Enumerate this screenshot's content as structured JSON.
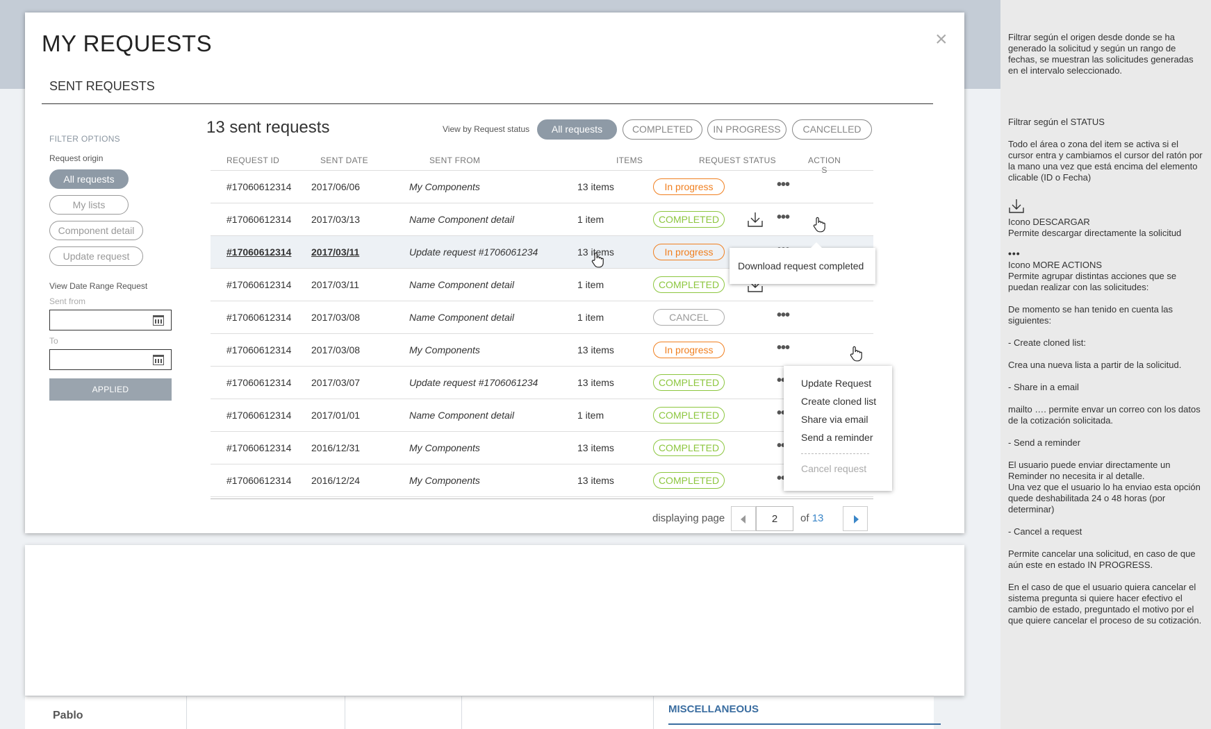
{
  "background": {
    "user_name": "Pablo",
    "section": "MISCELLANEOUS"
  },
  "modal": {
    "title": "MY REQUESTS",
    "close_icon": "close-icon",
    "section_tab": "SENT REQUESTS"
  },
  "filters": {
    "heading": "FILTER OPTIONS",
    "origin_label": "Request origin",
    "origins": [
      {
        "label": "All requests",
        "active": true
      },
      {
        "label": "My lists",
        "active": false
      },
      {
        "label": "Component detail",
        "active": false
      },
      {
        "label": "Update request",
        "active": false
      }
    ],
    "date_range_label": "View Date Range Request",
    "sent_from_label": "Sent from",
    "sent_from_value": "",
    "to_label": "To",
    "to_value": "",
    "applied_label": "APPLIED"
  },
  "list": {
    "count_label": "13 sent requests",
    "view_by_label": "View by Request status",
    "statuses": [
      {
        "label": "All requests",
        "active": true
      },
      {
        "label": "COMPLETED",
        "active": false
      },
      {
        "label": "IN PROGRESS",
        "active": false
      },
      {
        "label": "CANCELLED",
        "active": false
      }
    ],
    "columns": [
      "REQUEST ID",
      "SENT DATE",
      "SENT FROM",
      "ITEMS",
      "REQUEST STATUS",
      "ACTION\nS"
    ],
    "rows": [
      {
        "id": "#17060612314",
        "date": "2017/06/06",
        "from": "My Components",
        "items": "13 items",
        "status": "In progress",
        "kind": "prog",
        "download": false
      },
      {
        "id": "#17060612314",
        "date": "2017/03/13",
        "from": "Name Component detail",
        "items": "1 item",
        "status": "COMPLETED",
        "kind": "comp",
        "download": true
      },
      {
        "id": "#17060612314",
        "date": "2017/03/11",
        "from": "Update request #1706061234",
        "items": "13 items",
        "status": "In progress",
        "kind": "prog",
        "download": false
      },
      {
        "id": "#17060612314",
        "date": "2017/03/11",
        "from": "Name Component detail",
        "items": "1 item",
        "status": "COMPLETED",
        "kind": "comp",
        "download": true
      },
      {
        "id": "#17060612314",
        "date": "2017/03/08",
        "from": "Name Component detail",
        "items": "1 item",
        "status": "CANCEL",
        "kind": "canc",
        "download": false
      },
      {
        "id": "#17060612314",
        "date": "2017/03/08",
        "from": "My Components",
        "items": "13 items",
        "status": "In progress",
        "kind": "prog",
        "download": false
      },
      {
        "id": "#17060612314",
        "date": "2017/03/07",
        "from": "Update request #1706061234",
        "items": "13 items",
        "status": "COMPLETED",
        "kind": "comp",
        "download": false
      },
      {
        "id": "#17060612314",
        "date": "2017/01/01",
        "from": "Name Component detail",
        "items": "1 item",
        "status": "COMPLETED",
        "kind": "comp",
        "download": false
      },
      {
        "id": "#17060612314",
        "date": "2016/12/31",
        "from": "My Components",
        "items": "13 items",
        "status": "COMPLETED",
        "kind": "comp",
        "download": false
      },
      {
        "id": "#17060612314",
        "date": "2016/12/24",
        "from": "My Components",
        "items": "13 items",
        "status": "COMPLETED",
        "kind": "comp",
        "download": false
      }
    ],
    "hover_row": 2,
    "more_icon": "more-actions-icon",
    "download_icon": "download-icon"
  },
  "tooltip": {
    "text": "Download request completed"
  },
  "actions_menu": {
    "items": [
      "Update Request",
      "Create cloned list",
      "Share via email",
      "Send a reminder"
    ],
    "disabled_item": "Cancel request"
  },
  "pager": {
    "label": "displaying page",
    "current": "2",
    "of_label": "of",
    "total": "13"
  },
  "notes": {
    "p1": "Filtrar según el origen desde donde se ha generado la solicitud y según un rango de fechas, se muestran las solicitudes generadas en el intervalo seleccionado.",
    "p2": "Filtrar según el STATUS",
    "p3": "Todo el área o zona del item se activa si el cursor entra y cambiamos el cursor del ratón por la mano una vez que está encima del elemento clicable (ID o Fecha)",
    "p4": "Icono DESCARGAR\nPermite descargar directamente la solicitud",
    "p5": "Icono MORE ACTIONS\nPermite agrupar distintas acciones que se puedan realizar con las solicitudes:",
    "p6": "De momento se han tenido en cuenta las siguientes:",
    "p7": "- Create cloned list:",
    "p8": "Crea una nueva lista a partir de la solicitud.",
    "p9": "- Share in a email",
    "p10": "mailto …. permite envar un correo con los datos de la cotización solicitada.",
    "p11": "- Send a reminder",
    "p12": "El usuario puede enviar directamente un Reminder no necesita ir al detalle.\nUna vez que el usuario lo ha enviao esta opción quede deshabilitada 24 o 48 horas (por determinar)",
    "p13": "- Cancel a request",
    "p14": "Permite cancelar una solicitud, en caso de que aún este en estado IN PROGRESS.",
    "p15": "En el caso de  que el usuario quiera cancelar el sistema pregunta si quiere hacer efectivo el cambio de estado, preguntado el motivo por el que quiere cancelar el proceso de su cotización."
  }
}
